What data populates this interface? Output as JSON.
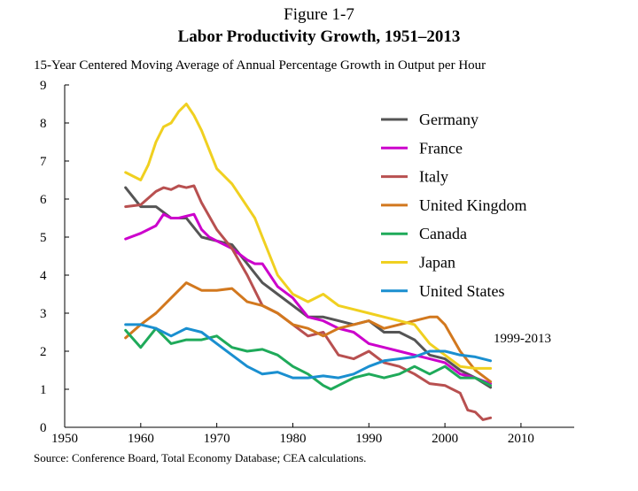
{
  "figure": {
    "label": "Figure 1-7",
    "title": "Labor Productivity Growth, 1951–2013",
    "subtitle": "15-Year Centered Moving Average of Annual Percentage Growth in Output per Hour",
    "source": "Source: Conference Board, Total Economy Database; CEA calculations."
  },
  "chart_data": {
    "type": "line",
    "title": "Labor Productivity Growth, 1951–2013",
    "subtitle": "15-Year Centered Moving Average of Annual Percentage Growth in Output per Hour",
    "xlabel": "",
    "ylabel": "",
    "xlim": [
      1950,
      2017
    ],
    "ylim": [
      0,
      9
    ],
    "xticks": [
      1950,
      1960,
      1970,
      1980,
      1990,
      2000,
      2010
    ],
    "yticks": [
      0,
      1,
      2,
      3,
      4,
      5,
      6,
      7,
      8,
      9
    ],
    "grid": false,
    "legend_position": "top-right",
    "annotation": "1999-2013",
    "series": [
      {
        "name": "Germany",
        "color": "#555555",
        "x": [
          1958,
          1960,
          1962,
          1964,
          1966,
          1968,
          1970,
          1972,
          1974,
          1976,
          1978,
          1980,
          1982,
          1984,
          1986,
          1988,
          1990,
          1992,
          1994,
          1996,
          1998,
          2000,
          2002,
          2004,
          2006
        ],
        "y": [
          6.3,
          5.8,
          5.8,
          5.5,
          5.5,
          5.0,
          4.9,
          4.8,
          4.3,
          3.8,
          3.5,
          3.2,
          2.9,
          2.9,
          2.8,
          2.7,
          2.8,
          2.5,
          2.5,
          2.3,
          1.9,
          1.8,
          1.5,
          1.3,
          1.05
        ]
      },
      {
        "name": "France",
        "color": "#cc00cc",
        "x": [
          1958,
          1960,
          1962,
          1963,
          1964,
          1965,
          1966,
          1967,
          1968,
          1969,
          1970,
          1972,
          1974,
          1975,
          1976,
          1978,
          1980,
          1982,
          1984,
          1986,
          1988,
          1990,
          1992,
          1994,
          1996,
          1998,
          2000,
          2002,
          2004,
          2006
        ],
        "y": [
          4.95,
          5.1,
          5.3,
          5.6,
          5.5,
          5.5,
          5.55,
          5.6,
          5.2,
          5.0,
          4.9,
          4.7,
          4.4,
          4.3,
          4.3,
          3.7,
          3.4,
          2.9,
          2.8,
          2.6,
          2.5,
          2.2,
          2.1,
          2.0,
          1.9,
          1.8,
          1.7,
          1.4,
          1.3,
          1.15
        ]
      },
      {
        "name": "Italy",
        "color": "#b85050",
        "x": [
          1958,
          1960,
          1962,
          1963,
          1964,
          1965,
          1966,
          1967,
          1968,
          1970,
          1972,
          1974,
          1976,
          1978,
          1980,
          1982,
          1984,
          1986,
          1988,
          1990,
          1992,
          1994,
          1996,
          1998,
          2000,
          2002,
          2003,
          2004,
          2005,
          2006
        ],
        "y": [
          5.8,
          5.85,
          6.2,
          6.3,
          6.25,
          6.35,
          6.3,
          6.35,
          5.9,
          5.2,
          4.7,
          4.0,
          3.2,
          3.0,
          2.7,
          2.4,
          2.5,
          1.9,
          1.8,
          2.0,
          1.7,
          1.6,
          1.4,
          1.15,
          1.1,
          0.9,
          0.45,
          0.4,
          0.2,
          0.25
        ]
      },
      {
        "name": "United Kingdom",
        "color": "#d2781e",
        "x": [
          1958,
          1960,
          1962,
          1964,
          1966,
          1968,
          1970,
          1972,
          1974,
          1976,
          1978,
          1980,
          1982,
          1984,
          1986,
          1988,
          1990,
          1992,
          1994,
          1996,
          1998,
          1999,
          2000,
          2002,
          2004,
          2006
        ],
        "y": [
          2.35,
          2.7,
          3.0,
          3.4,
          3.8,
          3.6,
          3.6,
          3.65,
          3.3,
          3.2,
          3.0,
          2.7,
          2.6,
          2.4,
          2.6,
          2.7,
          2.8,
          2.6,
          2.7,
          2.8,
          2.9,
          2.9,
          2.7,
          2.0,
          1.5,
          1.2
        ]
      },
      {
        "name": "Canada",
        "color": "#1faa5a",
        "x": [
          1958,
          1960,
          1962,
          1964,
          1966,
          1968,
          1970,
          1972,
          1974,
          1976,
          1978,
          1980,
          1982,
          1984,
          1985,
          1986,
          1988,
          1990,
          1992,
          1994,
          1996,
          1998,
          2000,
          2002,
          2004,
          2006
        ],
        "y": [
          2.55,
          2.1,
          2.6,
          2.2,
          2.3,
          2.3,
          2.4,
          2.1,
          2.0,
          2.05,
          1.9,
          1.6,
          1.4,
          1.1,
          1.0,
          1.1,
          1.3,
          1.4,
          1.3,
          1.4,
          1.6,
          1.4,
          1.6,
          1.3,
          1.3,
          1.1
        ]
      },
      {
        "name": "Japan",
        "color": "#f0d020",
        "x": [
          1958,
          1960,
          1961,
          1962,
          1963,
          1964,
          1965,
          1966,
          1967,
          1968,
          1970,
          1972,
          1974,
          1975,
          1976,
          1978,
          1980,
          1982,
          1984,
          1986,
          1988,
          1990,
          1992,
          1994,
          1996,
          1998,
          2000,
          2002,
          2004,
          2006
        ],
        "y": [
          6.7,
          6.5,
          6.9,
          7.5,
          7.9,
          8.0,
          8.3,
          8.5,
          8.2,
          7.8,
          6.8,
          6.4,
          5.8,
          5.5,
          5.0,
          4.0,
          3.5,
          3.3,
          3.5,
          3.2,
          3.1,
          3.0,
          2.9,
          2.8,
          2.7,
          2.2,
          1.9,
          1.6,
          1.55,
          1.55
        ]
      },
      {
        "name": "United States",
        "color": "#1a8fd0",
        "x": [
          1958,
          1960,
          1962,
          1964,
          1966,
          1968,
          1970,
          1972,
          1974,
          1976,
          1978,
          1980,
          1982,
          1984,
          1986,
          1988,
          1990,
          1992,
          1994,
          1996,
          1998,
          2000,
          2002,
          2004,
          2006
        ],
        "y": [
          2.7,
          2.7,
          2.6,
          2.4,
          2.6,
          2.5,
          2.2,
          1.9,
          1.6,
          1.4,
          1.45,
          1.3,
          1.3,
          1.35,
          1.3,
          1.4,
          1.6,
          1.75,
          1.8,
          1.85,
          2.0,
          2.0,
          1.9,
          1.85,
          1.75
        ]
      }
    ]
  }
}
